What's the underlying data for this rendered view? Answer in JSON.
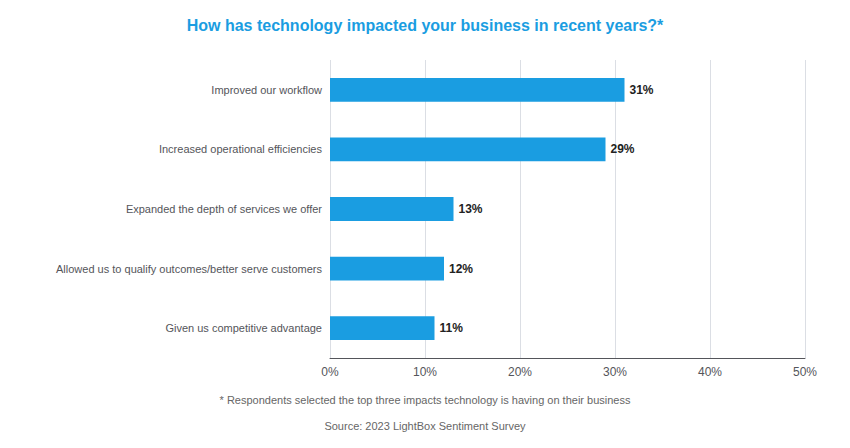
{
  "chart_data": {
    "type": "bar",
    "orientation": "horizontal",
    "title": "How has technology impacted your business in recent years?*",
    "categories": [
      "Given us competitive advantage",
      "Allowed us to qualify outcomes/better serve customers",
      "Expanded the depth of services we offer",
      "Increased operational efficiencies",
      "Improved our workflow"
    ],
    "values": [
      11,
      12,
      13,
      29,
      31
    ],
    "value_labels": [
      "11%",
      "12%",
      "13%",
      "29%",
      "31%"
    ],
    "data_labels": true,
    "color": "#1a9de1",
    "xlim": [
      0,
      50
    ],
    "xticks": [
      {
        "value": 0,
        "label": "0%"
      },
      {
        "value": 10,
        "label": "10%"
      },
      {
        "value": 20,
        "label": "20%"
      },
      {
        "value": 30,
        "label": "30%"
      },
      {
        "value": 40,
        "label": "40%"
      },
      {
        "value": 50,
        "label": "50%"
      }
    ],
    "grid": true,
    "annotations": [
      "* Respondents selected the top three impacts technology is having on their business",
      "Source: 2023 LightBox Sentiment Survey"
    ]
  }
}
